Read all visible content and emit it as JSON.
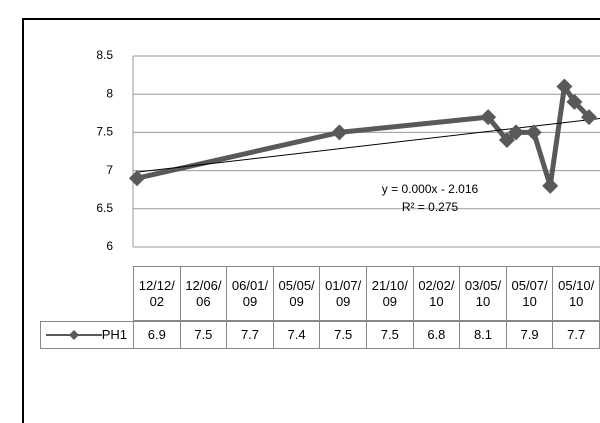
{
  "chart_data": {
    "type": "line",
    "x": [
      "12/12/02",
      "12/06/06",
      "06/01/09",
      "05/05/09",
      "01/07/09",
      "21/10/09",
      "02/02/10",
      "03/05/10",
      "05/07/10",
      "05/10/10"
    ],
    "series": [
      {
        "name": "PH1",
        "color": "#595959",
        "values": [
          6.9,
          7.5,
          7.7,
          7.4,
          7.5,
          7.5,
          6.8,
          8.1,
          7.9,
          7.7
        ]
      }
    ],
    "ylim": [
      6,
      8.5
    ],
    "yticks": [
      6,
      6.5,
      7,
      7.5,
      8,
      8.5
    ],
    "grid": true,
    "trendline": {
      "color": "#000000",
      "equation": "y = 0.000x - 2.016",
      "r_squared": "R² = 0.275"
    }
  }
}
